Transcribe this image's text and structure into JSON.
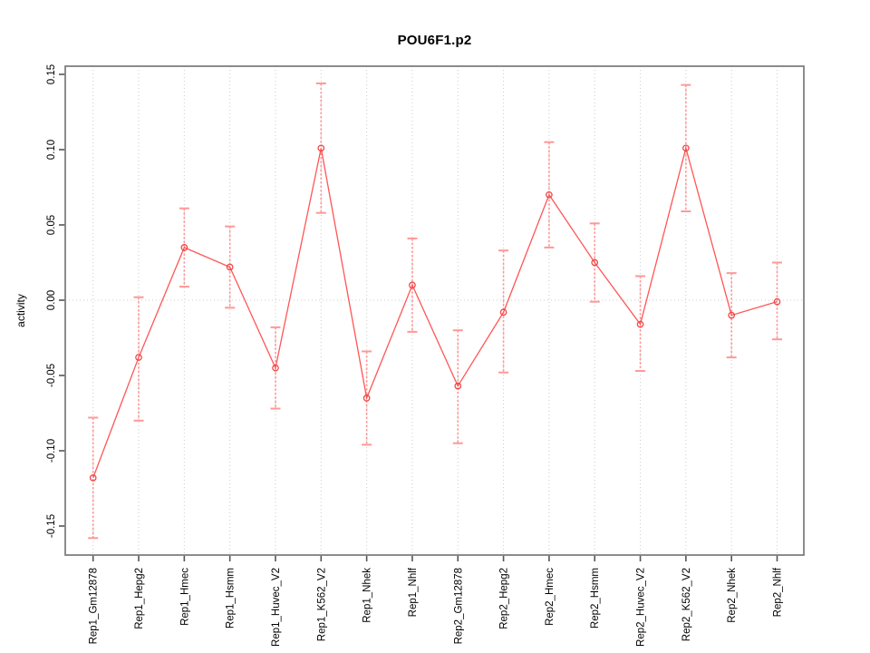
{
  "chart_data": {
    "type": "line",
    "title": "POU6F1.p2",
    "xlabel": "",
    "ylabel": "activity",
    "categories": [
      "Rep1_Gm12878",
      "Rep1_Hepg2",
      "Rep1_Hmec",
      "Rep1_Hsmm",
      "Rep1_Huvec_V2",
      "Rep1_K562_V2",
      "Rep1_Nhek",
      "Rep1_Nhlf",
      "Rep2_Gm12878",
      "Rep2_Hepg2",
      "Rep2_Hmec",
      "Rep2_Hsmm",
      "Rep2_Huvec_V2",
      "Rep2_K562_V2",
      "Rep2_Nhek",
      "Rep2_Nhlf"
    ],
    "series": [
      {
        "name": "activity",
        "values": [
          -0.118,
          -0.038,
          0.035,
          0.022,
          -0.045,
          0.101,
          -0.065,
          0.01,
          -0.057,
          -0.008,
          0.07,
          0.025,
          -0.016,
          0.101,
          -0.01,
          -0.001
        ],
        "error_low": [
          -0.158,
          -0.08,
          0.009,
          -0.005,
          -0.072,
          0.058,
          -0.096,
          -0.021,
          -0.095,
          -0.048,
          0.035,
          -0.001,
          -0.047,
          0.059,
          -0.038,
          -0.026
        ],
        "error_high": [
          -0.078,
          0.002,
          0.061,
          0.049,
          -0.018,
          0.144,
          -0.034,
          0.041,
          -0.02,
          0.033,
          0.105,
          0.051,
          0.016,
          0.143,
          0.018,
          0.025
        ]
      }
    ],
    "yticks": [
      -0.15,
      -0.1,
      -0.05,
      0.0,
      0.05,
      0.1,
      0.15
    ],
    "ytick_labels": [
      "-0.15",
      "-0.10",
      "-0.05",
      "0.00",
      "0.05",
      "0.10",
      "0.15"
    ],
    "ylim": [
      -0.169,
      0.155
    ],
    "grid": {
      "vertical_at_each_category": true,
      "horizontal_at_zero": true,
      "style": "dotted"
    },
    "legend": "none",
    "marker": "open-circle",
    "colors": {
      "series_line": "#ff5555",
      "point_stroke": "#f04848",
      "error_bar": "#ff9898",
      "grid": "#cccccc",
      "box": "#808080",
      "tick": "#555555",
      "text": "#000000",
      "background": "#ffffff"
    }
  }
}
